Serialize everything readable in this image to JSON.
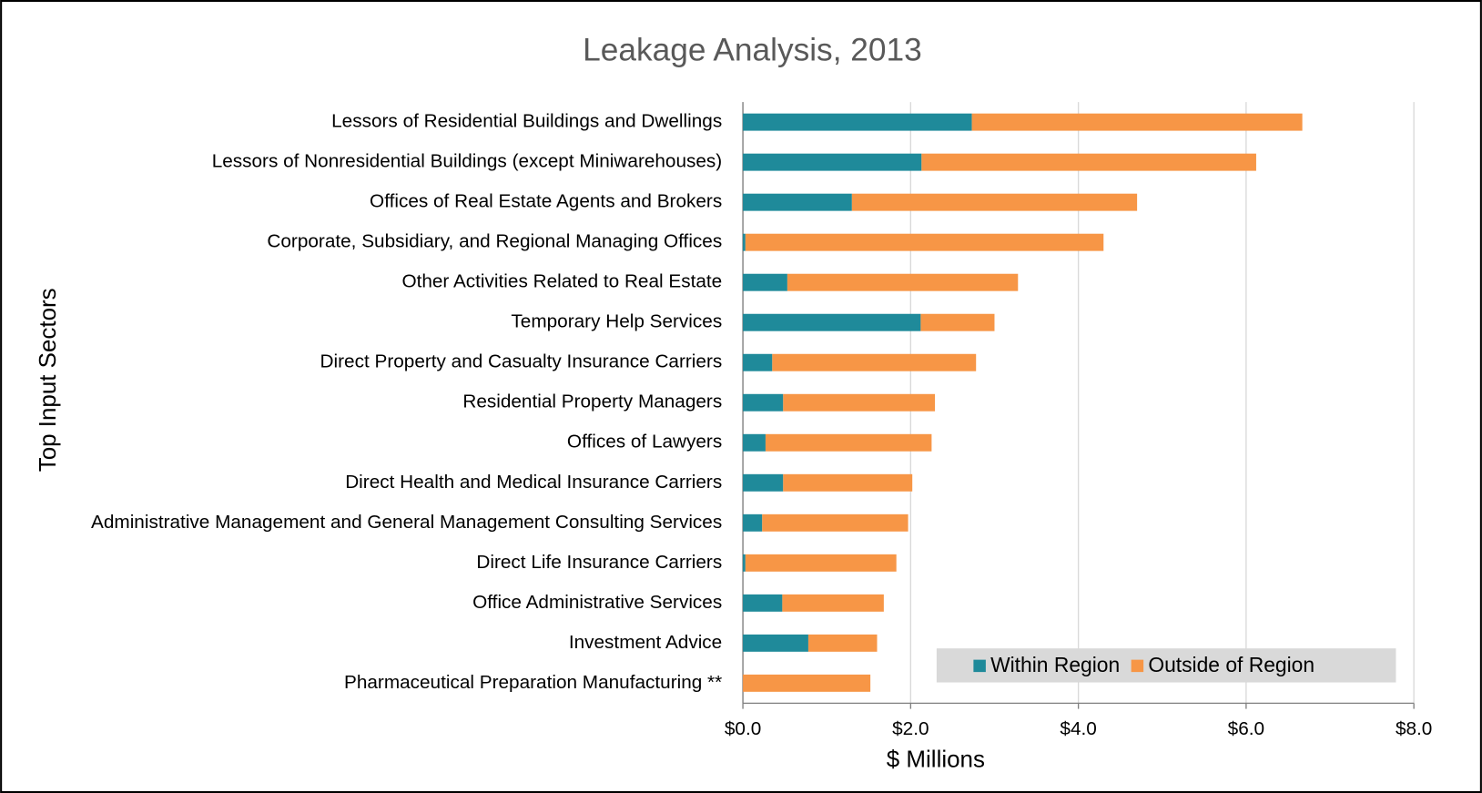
{
  "chart_data": {
    "type": "stacked-barh",
    "title": "Leakage Analysis, 2013",
    "xlabel": "$ Millions",
    "ylabel": "Top Input Sectors",
    "categories": [
      "Lessors of Residential Buildings and Dwellings",
      "Lessors of Nonresidential Buildings (except Miniwarehouses)",
      "Offices of Real Estate Agents and Brokers",
      "Corporate, Subsidiary, and Regional Managing Offices",
      "Other Activities Related to Real Estate",
      "Temporary Help Services",
      "Direct Property and Casualty Insurance Carriers",
      "Residential Property Managers",
      "Offices of Lawyers",
      "Direct Health and Medical Insurance Carriers",
      "Administrative Management and General Management Consulting Services",
      "Direct Life Insurance Carriers",
      "Office Administrative Services",
      "Investment Advice",
      "Pharmaceutical Preparation Manufacturing **"
    ],
    "series": [
      {
        "name": "Within Region",
        "color": "#1f8a9a",
        "values": [
          2.73,
          2.13,
          1.3,
          0.03,
          0.53,
          2.12,
          0.35,
          0.48,
          0.27,
          0.48,
          0.23,
          0.03,
          0.47,
          0.78,
          0
        ]
      },
      {
        "name": "Outside of Region",
        "color": "#f79646",
        "values": [
          3.94,
          3.99,
          3.4,
          4.27,
          2.75,
          0.88,
          2.43,
          1.81,
          1.98,
          1.54,
          1.74,
          1.8,
          1.21,
          0.82,
          1.52
        ]
      }
    ],
    "xlim": [
      0,
      8
    ],
    "xticks": [
      {
        "value": 0,
        "label": "$0.0"
      },
      {
        "value": 2,
        "label": "$2.0"
      },
      {
        "value": 4,
        "label": "$4.0"
      },
      {
        "value": 6,
        "label": "$6.0"
      },
      {
        "value": 8,
        "label": "$8.0"
      }
    ],
    "grid": true,
    "legend": "lower right"
  }
}
